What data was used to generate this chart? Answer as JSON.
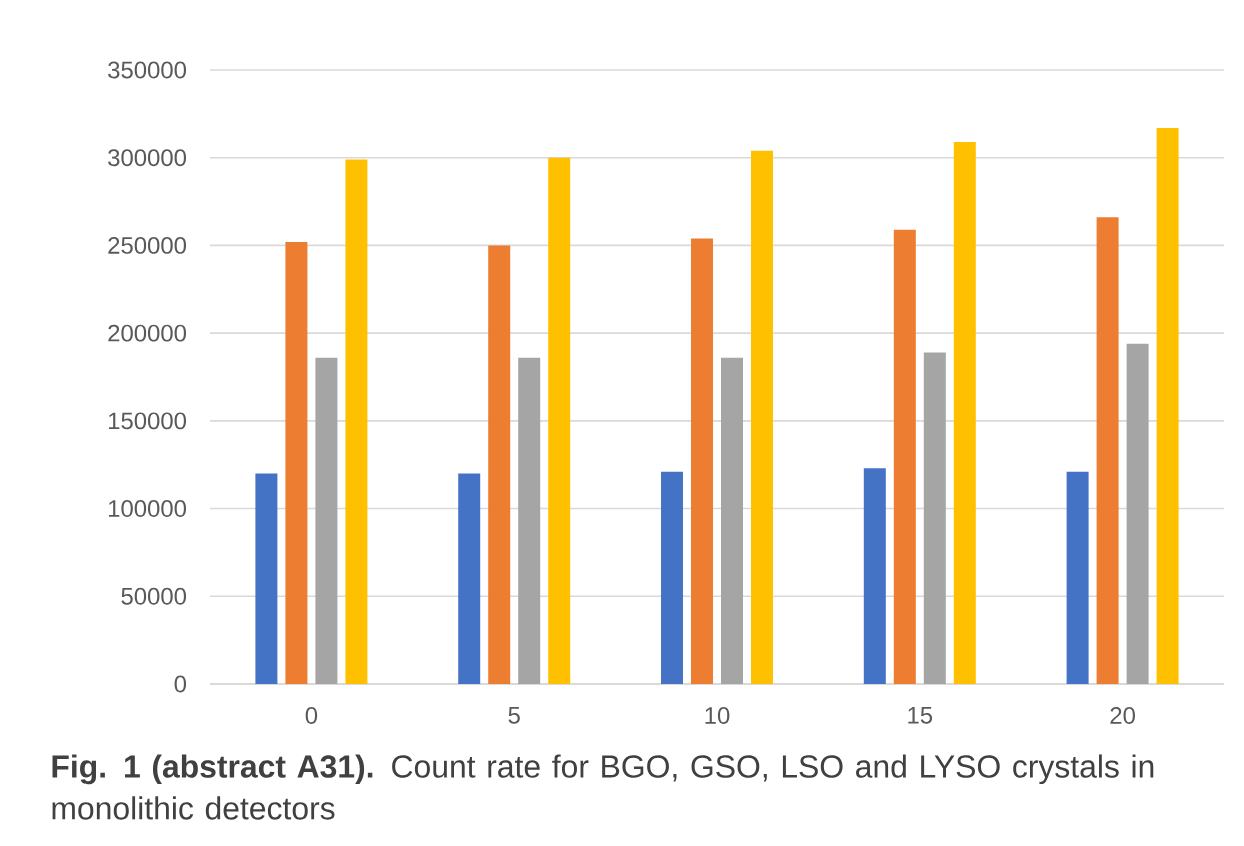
{
  "chart_data": {
    "type": "bar",
    "categories": [
      "0",
      "5",
      "10",
      "15",
      "20"
    ],
    "series": [
      {
        "color": "#4472c4",
        "values": [
          120000,
          120000,
          121000,
          123000,
          121000
        ]
      },
      {
        "color": "#ed7d31",
        "values": [
          252000,
          250000,
          254000,
          259000,
          266000
        ]
      },
      {
        "color": "#a5a5a5",
        "values": [
          186000,
          186000,
          186000,
          189000,
          194000
        ]
      },
      {
        "color": "#ffc000",
        "values": [
          299000,
          300000,
          304000,
          309000,
          317000
        ]
      }
    ],
    "ylim": [
      0,
      350000
    ],
    "yticks": [
      0,
      50000,
      100000,
      150000,
      200000,
      250000,
      300000,
      350000
    ],
    "grid": "y",
    "annotations": [
      "**Fig. 1 (abstract A31).** Count rate for BGO, GSO, LSO and LYSO crystals in monolithic detectors"
    ]
  }
}
